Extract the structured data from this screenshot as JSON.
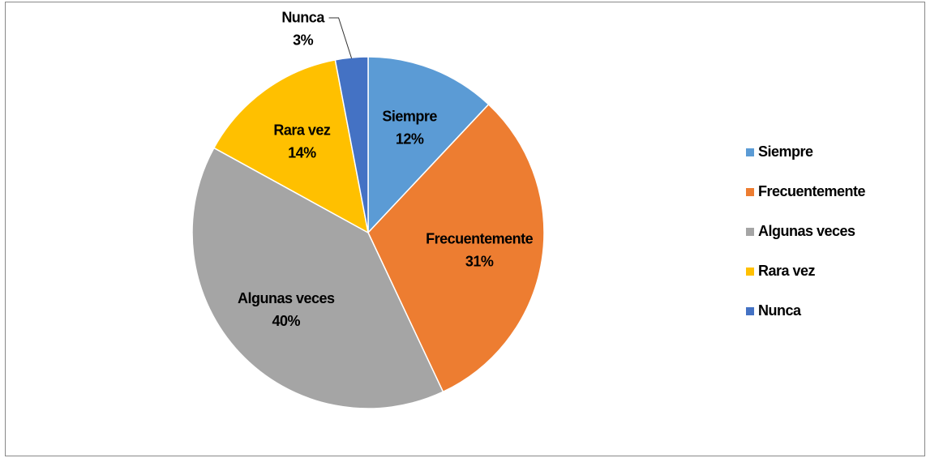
{
  "chart_data": {
    "type": "pie",
    "categories": [
      "Siempre",
      "Frecuentemente",
      "Algunas veces",
      "Rara vez",
      "Nunca"
    ],
    "values": [
      12,
      31,
      40,
      14,
      3
    ],
    "value_labels": [
      "12%",
      "31%",
      "40%",
      "14%",
      "3%"
    ],
    "colors": [
      "#5b9bd5",
      "#ed7d31",
      "#a5a5a5",
      "#ffc000",
      "#4472c4"
    ],
    "legend": "right"
  }
}
